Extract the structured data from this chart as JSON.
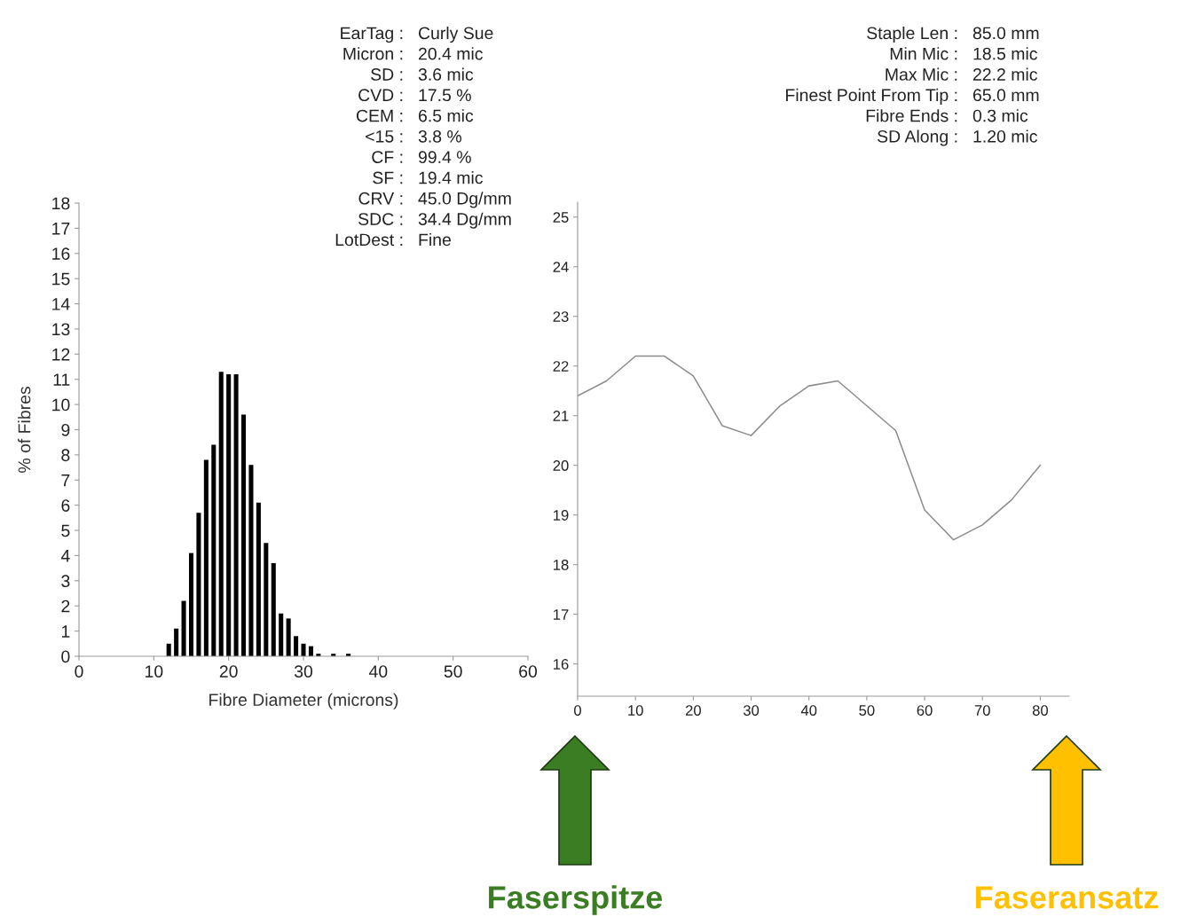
{
  "chart_data": [
    {
      "type": "histogram",
      "xlabel": "Fibre Diameter (microns)",
      "ylabel": "% of Fibres",
      "bins": [
        11.5,
        12.5,
        13.5,
        14.5,
        15.5,
        16.5,
        17.5,
        18.5,
        19.5,
        20.5,
        21.5,
        22.5,
        23.5,
        24.5,
        25.5,
        26.5,
        27.5,
        28.5,
        29.5,
        30.5,
        31.5,
        32.5,
        33.5,
        34.5,
        35.5,
        36.5
      ],
      "values": [
        0.5,
        1.1,
        2.2,
        4.1,
        5.7,
        7.8,
        8.4,
        11.3,
        11.2,
        11.2,
        9.6,
        7.6,
        6.1,
        4.5,
        3.7,
        1.7,
        1.5,
        0.8,
        0.5,
        0.4,
        0.1,
        0,
        0.1,
        0,
        0.1
      ],
      "color": "#000000",
      "xlim": [
        0,
        60
      ],
      "xticks": [
        0,
        10,
        20,
        30,
        40,
        50,
        60
      ],
      "ylim": [
        0,
        18
      ],
      "yticks": [
        0,
        1,
        2,
        3,
        4,
        5,
        6,
        7,
        8,
        9,
        10,
        11,
        12,
        13,
        14,
        15,
        16,
        17,
        18
      ],
      "grid": false,
      "annotations": [
        "EarTag : Curly Sue",
        "Micron : 20.4 mic",
        "SD : 3.6 mic",
        "CVD : 17.5 %",
        "CEM : 6.5 mic",
        "<15 : 3.8 %",
        "CF : 99.4 %",
        "SF : 19.4 mic",
        "CRV : 45.0 Dg/mm",
        "SDC : 34.4 Dg/mm",
        "LotDest : Fine"
      ]
    },
    {
      "type": "line",
      "x": [
        0,
        5,
        10,
        15,
        20,
        25,
        30,
        35,
        40,
        45,
        50,
        55,
        60,
        65,
        70,
        75,
        80
      ],
      "values": [
        21.4,
        21.7,
        22.2,
        22.2,
        21.8,
        20.8,
        20.6,
        21.2,
        21.6,
        21.7,
        21.2,
        20.7,
        19.1,
        18.5,
        18.8,
        19.3,
        20.0
      ],
      "color": "#8c8c8c",
      "marker": "none",
      "line_style": "solid",
      "xlim": [
        0,
        85
      ],
      "xticks": [
        0,
        10,
        20,
        30,
        40,
        50,
        60,
        70,
        80
      ],
      "ylim": [
        15.35,
        25.3
      ],
      "yticks": [
        16,
        17,
        18,
        19,
        20,
        21,
        22,
        23,
        24,
        25
      ],
      "grid": false,
      "annotations": [
        "Staple Len : 85.0 mm",
        "Min Mic : 18.5 mic",
        "Max Mic : 22.2 mic",
        "Finest Point From Tip : 65.0 mm",
        "Fibre Ends : 0.3 mic",
        "SD Along : 1.20 mic",
        "Faserspitze",
        "Faseransatz"
      ]
    }
  ]
}
